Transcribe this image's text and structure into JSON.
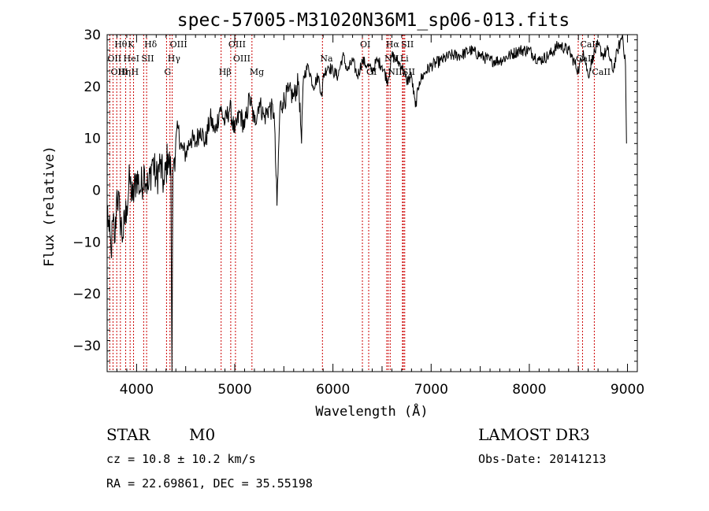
{
  "chart_data": {
    "type": "line",
    "title": "spec-57005-M31020N36M1_sp06-013.fits",
    "xlabel": "Wavelength (Å)",
    "ylabel": "Flux (relative)",
    "xlim": [
      3700,
      9100
    ],
    "ylim": [
      -35,
      30
    ],
    "xticks": [
      {
        "value": 4000,
        "label": "4000"
      },
      {
        "value": 5000,
        "label": "5000"
      },
      {
        "value": 6000,
        "label": "6000"
      },
      {
        "value": 7000,
        "label": "7000"
      },
      {
        "value": 8000,
        "label": "8000"
      },
      {
        "value": 9000,
        "label": "9000"
      }
    ],
    "yticks": [
      {
        "value": -30,
        "label": "−30"
      },
      {
        "value": -20,
        "label": "−20"
      },
      {
        "value": -10,
        "label": "−10"
      },
      {
        "value": 0,
        "label": "0"
      },
      {
        "value": 10,
        "label": "10"
      },
      {
        "value": 20,
        "label": "20"
      },
      {
        "value": 30,
        "label": "30"
      }
    ],
    "spectrum": {
      "name": "flux",
      "x": [
        3700,
        3720,
        3740,
        3760,
        3780,
        3800,
        3830,
        3860,
        3900,
        3930,
        3960,
        4000,
        4040,
        4080,
        4120,
        4160,
        4200,
        4240,
        4280,
        4320,
        4350,
        4360,
        4370,
        4380,
        4420,
        4460,
        4500,
        4550,
        4600,
        4650,
        4700,
        4750,
        4800,
        4850,
        4900,
        4950,
        5000,
        5050,
        5100,
        5150,
        5200,
        5250,
        5300,
        5350,
        5400,
        5430,
        5460,
        5490,
        5550,
        5600,
        5650,
        5680,
        5700,
        5750,
        5800,
        5850,
        5890,
        5900,
        5950,
        6000,
        6050,
        6100,
        6150,
        6200,
        6250,
        6300,
        6350,
        6400,
        6450,
        6500,
        6560,
        6600,
        6650,
        6700,
        6750,
        6800,
        6840,
        6880,
        6950,
        7000,
        7100,
        7200,
        7300,
        7400,
        7500,
        7600,
        7700,
        7800,
        7900,
        8000,
        8100,
        8200,
        8300,
        8400,
        8500,
        8550,
        8600,
        8650,
        8700,
        8750,
        8800,
        8850,
        8900,
        8950,
        8980,
        8990
      ],
      "y": [
        -3,
        -8,
        -12,
        -6,
        -10,
        0,
        -5,
        -9,
        -3,
        2,
        -2,
        3,
        0,
        4,
        0,
        6,
        2,
        5,
        1,
        7,
        3,
        -35,
        4,
        6,
        12,
        8,
        7,
        10,
        9,
        12,
        9,
        14,
        11,
        16,
        13,
        16,
        11,
        15,
        12,
        18,
        13,
        17,
        14,
        16,
        15,
        -3,
        16,
        17,
        19,
        18,
        21,
        9,
        22,
        24,
        20,
        22,
        18,
        22,
        24,
        23,
        22,
        26,
        23,
        25,
        22,
        25,
        24,
        23,
        25,
        24,
        21,
        26,
        25,
        24,
        21,
        22,
        16,
        21,
        23,
        24,
        25,
        26,
        26,
        27,
        26,
        25,
        25,
        26,
        27,
        27,
        25,
        26,
        28,
        27,
        23,
        27,
        22,
        26,
        28,
        26,
        27,
        23,
        27,
        30,
        24,
        9
      ]
    },
    "spectral_lines": [
      {
        "label": "Hθ",
        "wavelength": 3798,
        "row": 1
      },
      {
        "label": "K",
        "wavelength": 3934,
        "row": 1
      },
      {
        "label": "Hδ",
        "wavelength": 4102,
        "row": 1
      },
      {
        "label": "OIII",
        "wavelength": 4363,
        "row": 1
      },
      {
        "label": "OIII",
        "wavelength": 4959,
        "row": 1
      },
      {
        "label": "OI",
        "wavelength": 6300,
        "row": 1
      },
      {
        "label": "Hα",
        "wavelength": 6563,
        "row": 1
      },
      {
        "label": "SII",
        "wavelength": 6717,
        "row": 1
      },
      {
        "label": "CaII",
        "wavelength": 8542,
        "row": 1
      },
      {
        "label": "OII",
        "wavelength": 3727,
        "row": 2
      },
      {
        "label": "HeI",
        "wavelength": 3889,
        "row": 2
      },
      {
        "label": "SII",
        "wavelength": 4072,
        "row": 2
      },
      {
        "label": "Hγ",
        "wavelength": 4340,
        "row": 2
      },
      {
        "label": "OIII",
        "wavelength": 5007,
        "row": 2
      },
      {
        "label": "NII",
        "wavelength": 6548,
        "row": 2
      },
      {
        "label": "Li",
        "wavelength": 6708,
        "row": 2
      },
      {
        "label": "CaII",
        "wavelength": 8498,
        "row": 2
      },
      {
        "label": "Na",
        "wavelength": 5893,
        "row": 2
      },
      {
        "label": "OIII",
        "wavelength": 3760,
        "row": 3
      },
      {
        "label": "Hη",
        "wavelength": 3835,
        "row": 3
      },
      {
        "label": "H",
        "wavelength": 3969,
        "row": 3
      },
      {
        "label": "G",
        "wavelength": 4305,
        "row": 3
      },
      {
        "label": "Hβ",
        "wavelength": 4861,
        "row": 3
      },
      {
        "label": "Mg",
        "wavelength": 5175,
        "row": 3
      },
      {
        "label": "OI",
        "wavelength": 6364,
        "row": 3
      },
      {
        "label": "NII",
        "wavelength": 6583,
        "row": 3
      },
      {
        "label": "SII",
        "wavelength": 6731,
        "row": 3
      },
      {
        "label": "CaII",
        "wavelength": 8662,
        "row": 3
      }
    ]
  },
  "info": {
    "object_type": "STAR",
    "subclass": "M0",
    "survey": "LAMOST DR3",
    "cz": "cz = 10.8 ± 10.2 km/s",
    "obs_date": "Obs-Date: 20141213",
    "coords": "RA =  22.69861, DEC =  35.55198"
  },
  "colors": {
    "spectrum": "#000000",
    "line_markers": "#cc0000",
    "axes": "#000000"
  }
}
